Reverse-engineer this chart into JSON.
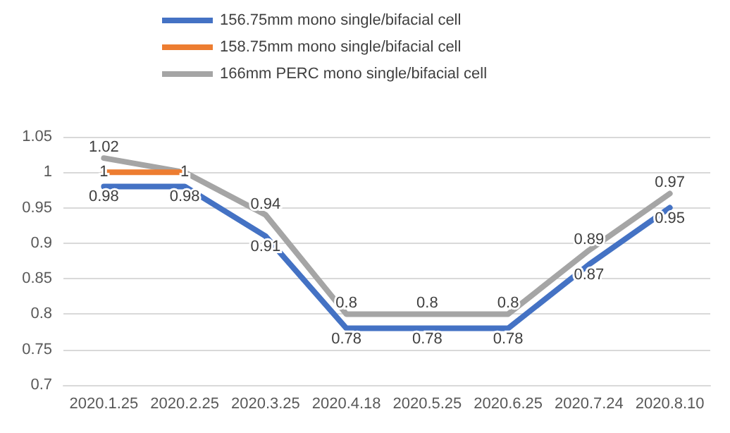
{
  "chart_data": {
    "type": "line",
    "categories": [
      "2020.1.25",
      "2020.2.25",
      "2020.3.25",
      "2020.4.18",
      "2020.5.25",
      "2020.6.25",
      "2020.7.24",
      "2020.8.10"
    ],
    "series": [
      {
        "name": "156.75mm mono single/bifacial cell",
        "color": "#4472c4",
        "values": [
          0.98,
          0.98,
          0.91,
          0.78,
          0.78,
          0.78,
          0.87,
          0.95
        ],
        "value_labels": [
          "0.98",
          "0.98",
          "0.91",
          "0.78",
          "0.78",
          "0.78",
          "0.87",
          "0.95"
        ]
      },
      {
        "name": "158.75mm mono single/bifacial cell",
        "color": "#ed7d31",
        "values": [
          1,
          1,
          null,
          null,
          null,
          null,
          null,
          null
        ],
        "value_labels": [
          "1",
          "1",
          null,
          null,
          null,
          null,
          null,
          null
        ]
      },
      {
        "name": "166mm PERC mono single/bifacial cell",
        "color": "#a5a5a5",
        "values": [
          1.02,
          1,
          0.94,
          0.8,
          0.8,
          0.8,
          0.89,
          0.97
        ],
        "value_labels": [
          "1.02",
          null,
          "0.94",
          "0.8",
          "0.8",
          "0.8",
          "0.89",
          "0.97"
        ]
      }
    ],
    "ylim": [
      0.7,
      1.05
    ],
    "yticks": [
      0.7,
      0.75,
      0.8,
      0.85,
      0.9,
      0.95,
      1,
      1.05
    ],
    "grid": "y",
    "legend": "top",
    "marker": "none",
    "line_style": "solid"
  }
}
